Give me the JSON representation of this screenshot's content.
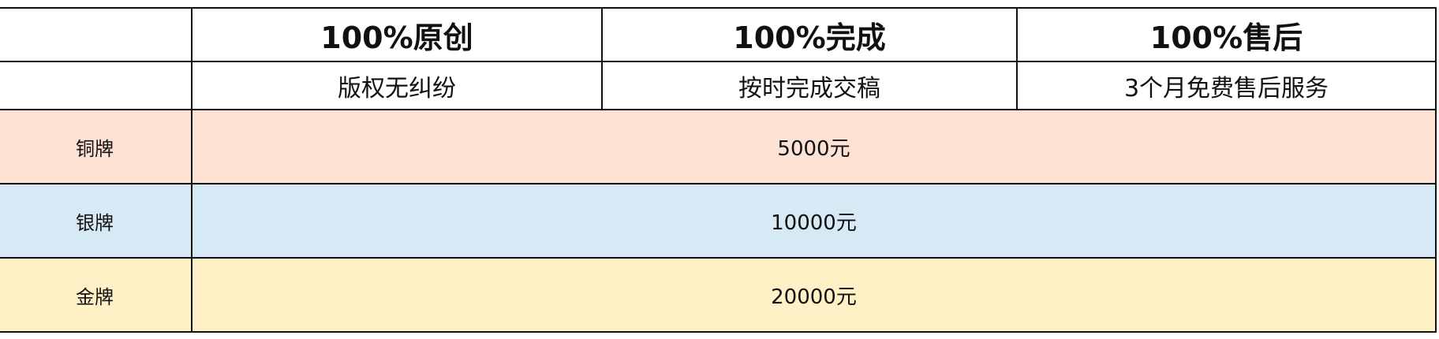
{
  "header": {
    "titles": [
      "100%原创",
      "100%完成",
      "100%售后"
    ],
    "subtitles": [
      "版权无纠纷",
      "按时完成交稿",
      "3个月免费售后服务"
    ]
  },
  "tiers": [
    {
      "label": "铜牌",
      "price": "5000元",
      "color": "#fde2d4"
    },
    {
      "label": "银牌",
      "price": "10000元",
      "color": "#d8e9f6"
    },
    {
      "label": "金牌",
      "price": "20000元",
      "color": "#fef1c6"
    }
  ]
}
